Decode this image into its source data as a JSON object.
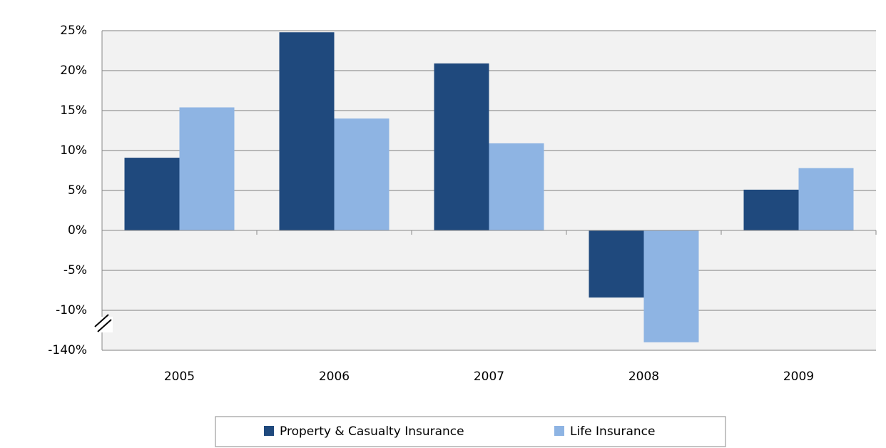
{
  "chart_data": {
    "type": "bar",
    "categories": [
      "2005",
      "2006",
      "2007",
      "2008",
      "2009"
    ],
    "series": [
      {
        "name": "Property & Casualty Insurance",
        "color": "#1f497d",
        "values": [
          9.1,
          24.8,
          20.9,
          -8.4,
          5.1
        ]
      },
      {
        "name": "Life Insurance",
        "color": "#8eb4e3",
        "values": [
          15.4,
          14.0,
          10.9,
          -139,
          7.8
        ]
      }
    ],
    "ylim": [
      -140,
      25
    ],
    "yticks": [
      {
        "value": 25,
        "label": "25%"
      },
      {
        "value": 20,
        "label": "20%"
      },
      {
        "value": 15,
        "label": "15%"
      },
      {
        "value": 10,
        "label": "10%"
      },
      {
        "value": 5,
        "label": "5%"
      },
      {
        "value": 0,
        "label": "0%"
      },
      {
        "value": -5,
        "label": "-5%"
      },
      {
        "value": -10,
        "label": "-10%"
      },
      {
        "value": -140,
        "label": "-140%"
      }
    ],
    "grid": true,
    "legend": "bottom"
  }
}
